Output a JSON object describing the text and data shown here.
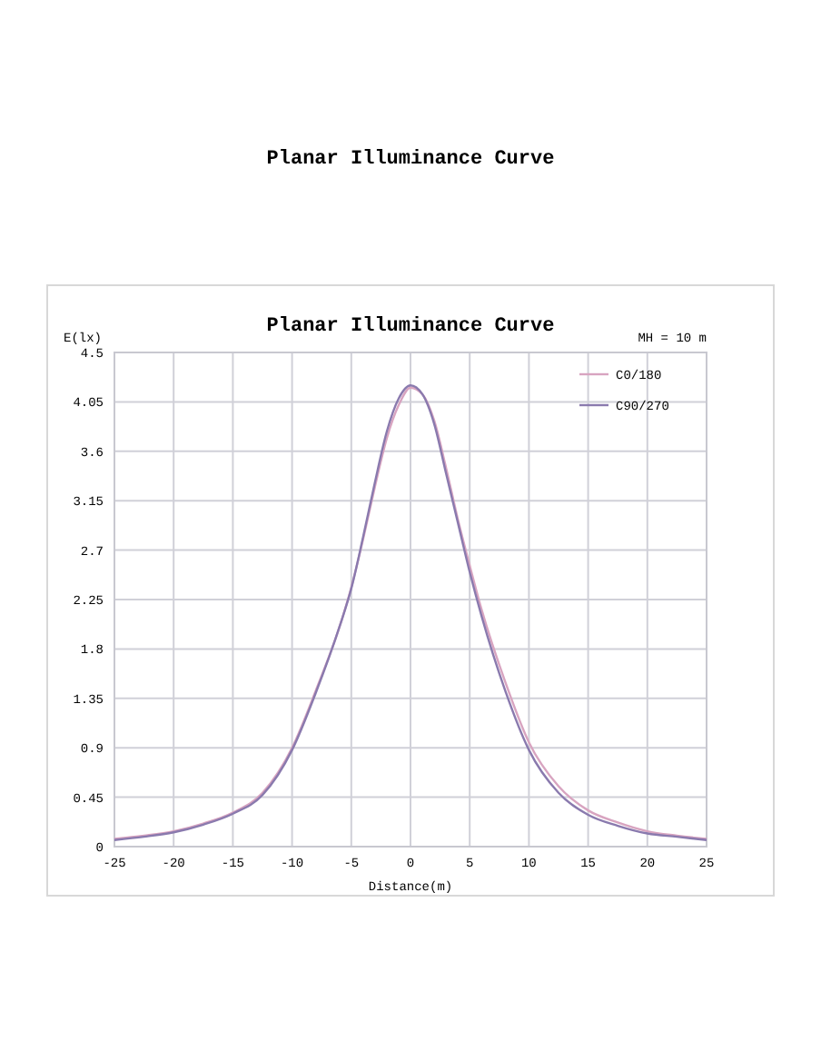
{
  "chart_data": {
    "type": "line",
    "title": "Planar Illuminance Curve",
    "subtitle": "Planar Illuminance Curve",
    "xlabel": "Distance(m)",
    "ylabel": "E(lx)",
    "annotations": [
      "MH = 10 m"
    ],
    "xlim": [
      -25,
      25
    ],
    "xticks": [
      -25,
      -20,
      -15,
      -10,
      -5,
      0,
      5,
      10,
      15,
      20,
      25
    ],
    "ylim": [
      0,
      4.5
    ],
    "yticks": [
      0,
      0.45,
      0.9,
      1.35,
      1.8,
      2.25,
      2.7,
      3.15,
      3.6,
      4.05,
      4.5
    ],
    "grid": true,
    "legend": "top right",
    "marker": "none",
    "line_style": "solid",
    "series": [
      {
        "name": "C0/180",
        "color": "#d8a4c0",
        "x": [
          -25,
          -22.5,
          -20,
          -17.5,
          -15,
          -12.5,
          -10,
          -8,
          -6,
          -5,
          -4,
          -3,
          -2,
          -1,
          0,
          1,
          2,
          3,
          4,
          5,
          6,
          8,
          10,
          12.5,
          15,
          17.5,
          20,
          22.5,
          25
        ],
        "values": [
          0.07,
          0.1,
          0.14,
          0.21,
          0.31,
          0.49,
          0.9,
          1.42,
          2.0,
          2.36,
          2.8,
          3.28,
          3.72,
          4.02,
          4.18,
          4.12,
          3.88,
          3.45,
          2.98,
          2.56,
          2.16,
          1.5,
          0.95,
          0.55,
          0.33,
          0.22,
          0.14,
          0.1,
          0.07
        ]
      },
      {
        "name": "C90/270",
        "color": "#8a7aae",
        "x": [
          -25,
          -22.5,
          -20,
          -17.5,
          -15,
          -12.5,
          -10,
          -8,
          -6,
          -5,
          -4,
          -3,
          -2,
          -1,
          0,
          1,
          2,
          3,
          4,
          5,
          6,
          8,
          10,
          12.5,
          15,
          17.5,
          20,
          22.5,
          25
        ],
        "values": [
          0.06,
          0.09,
          0.13,
          0.2,
          0.3,
          0.47,
          0.88,
          1.4,
          2.0,
          2.35,
          2.82,
          3.32,
          3.78,
          4.08,
          4.2,
          4.12,
          3.85,
          3.4,
          2.95,
          2.5,
          2.1,
          1.42,
          0.88,
          0.49,
          0.29,
          0.19,
          0.12,
          0.09,
          0.06
        ]
      }
    ]
  }
}
